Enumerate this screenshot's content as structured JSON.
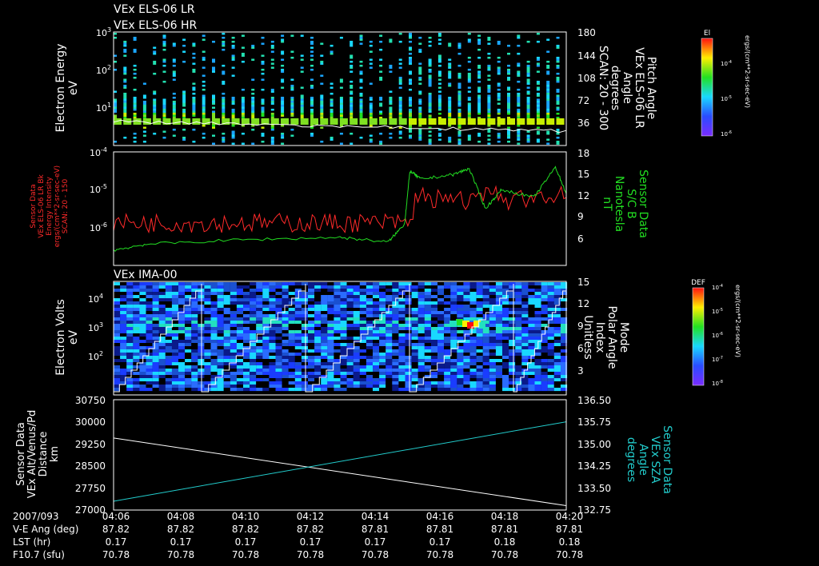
{
  "colors": {
    "background": "#000000",
    "axis": "#ffffff",
    "energy_intensity": "#ff2a2a",
    "magnetic_field": "#22dd22",
    "sza": "#22cccc",
    "altitude": "#ffffff"
  },
  "panel_titles": {
    "els_lr": "VEx ELS-06 LR",
    "els_hr": "VEx ELS-06 HR",
    "ima": "VEx IMA-00"
  },
  "time_axis": {
    "date_label": "2007/093",
    "ticks": [
      "04:06",
      "04:08",
      "04:10",
      "04:12",
      "04:14",
      "04:16",
      "04:18",
      "04:20"
    ],
    "rows": [
      {
        "label": "V-E Ang (deg)",
        "values": [
          "87.82",
          "87.82",
          "87.82",
          "87.82",
          "87.81",
          "87.81",
          "87.81",
          "87.81"
        ]
      },
      {
        "label": "LST (hr)",
        "values": [
          "0.17",
          "0.17",
          "0.17",
          "0.17",
          "0.17",
          "0.17",
          "0.18",
          "0.18"
        ]
      },
      {
        "label": "F10.7 (sfu)",
        "values": [
          "70.78",
          "70.78",
          "70.78",
          "70.78",
          "70.78",
          "70.78",
          "70.78",
          "70.78"
        ]
      }
    ]
  },
  "chart_data": [
    {
      "type": "heatmap",
      "panel": "els",
      "ylabel": [
        "Electron Energy",
        "eV"
      ],
      "y_ticks": [
        {
          "base": "10",
          "exp": "3"
        },
        {
          "base": "10",
          "exp": "2"
        },
        {
          "base": "10",
          "exp": "1"
        }
      ],
      "y_scale": "log",
      "ylim": [
        1,
        1000
      ],
      "right_ylabel": [
        "Pitch Angle",
        "VEx ELS-06 LR",
        "Angle",
        "degrees",
        "SCAN: 20 - 300"
      ],
      "right_ticks": [
        "180",
        "144",
        "108",
        "72",
        "36"
      ],
      "right_ylim": [
        0,
        180
      ],
      "colorbar": {
        "title": "El",
        "unit": "ergs/(cm**2-sr-sec-eV)",
        "ticks": [
          {
            "base": "10",
            "exp": "-4"
          },
          {
            "base": "10",
            "exp": "-5"
          },
          {
            "base": "10",
            "exp": "-6"
          }
        ]
      },
      "overlay_line": {
        "name": "pitch angle",
        "color": "#ffffff"
      }
    },
    {
      "type": "line",
      "panel": "sensor",
      "left_ylabel": [
        "Sensor Data",
        "VEx ELS-06 LR Bk",
        "Energy Intensity",
        "ergs/(cm**2-sr-sec-eV)",
        "SCAN: 20 - 150"
      ],
      "left_ticks": [
        {
          "base": "10",
          "exp": "-4"
        },
        {
          "base": "10",
          "exp": "-5"
        },
        {
          "base": "10",
          "exp": "-6"
        }
      ],
      "left_scale": "log",
      "right_ylabel": [
        "Sensor Data",
        "S/C B",
        "Nanotesla",
        "nT"
      ],
      "right_ticks": [
        "18",
        "15",
        "12",
        "9",
        "6"
      ],
      "right_ylim": [
        3,
        18
      ],
      "series": [
        {
          "name": "Energy Intensity",
          "color": "#ff2a2a",
          "axis": "left",
          "log10_values": [
            -6.1,
            -6.15,
            -5.8,
            -5.5,
            -5.3,
            -5.35,
            -5.25
          ],
          "times": [
            "04:06",
            "04:08",
            "04:10",
            "04:12",
            "04:14",
            "04:16",
            "04:18"
          ]
        },
        {
          "name": "S/C B",
          "color": "#22dd22",
          "axis": "right",
          "x": [
            "04:06",
            "04:07",
            "04:10",
            "04:13",
            "04:14:30",
            "04:15:00",
            "04:15:10",
            "04:15:30",
            "04:16:30",
            "04:17:00",
            "04:17:30",
            "04:18:00",
            "04:19:00",
            "04:19:40",
            "04:20"
          ],
          "values": [
            5.0,
            5.8,
            6.4,
            6.7,
            6.1,
            8.5,
            15.5,
            14.4,
            15.0,
            15.8,
            10.5,
            13.0,
            12.0,
            16.0,
            12.5
          ]
        }
      ]
    },
    {
      "type": "heatmap",
      "panel": "ima",
      "ylabel": [
        "Electron Volts",
        "eV"
      ],
      "y_ticks": [
        {
          "base": "10",
          "exp": "4"
        },
        {
          "base": "10",
          "exp": "3"
        },
        {
          "base": "10",
          "exp": "2"
        }
      ],
      "y_scale": "log",
      "right_ylabel": [
        "Mode",
        "Polar Angle",
        "Index",
        "Unitless"
      ],
      "right_ticks": [
        "15",
        "12",
        "9",
        "6",
        "3"
      ],
      "right_ylim": [
        0,
        15
      ],
      "colorbar": {
        "title": "DEF",
        "unit": "ergs/(cm**2-sr-sec-eV)",
        "ticks": [
          {
            "base": "10",
            "exp": "-4"
          },
          {
            "base": "10",
            "exp": "-5"
          },
          {
            "base": "10",
            "exp": "-6"
          },
          {
            "base": "10",
            "exp": "-7"
          },
          {
            "base": "10",
            "exp": "-8"
          }
        ]
      },
      "overlay_line": {
        "name": "polar angle index staircase",
        "color": "#ffffff"
      }
    },
    {
      "type": "line",
      "panel": "position",
      "left_ylabel": [
        "Sensor Data",
        "VEx Alt/Venus/Pd",
        "Distance",
        "km"
      ],
      "left_ticks": [
        "30750",
        "30000",
        "29250",
        "28500",
        "27750",
        "27000"
      ],
      "ylim": [
        27000,
        30750
      ],
      "right_ylabel": [
        "Sensor Data",
        "VEx SZA",
        "Angle",
        "degrees"
      ],
      "right_ticks": [
        "136.50",
        "135.75",
        "135.00",
        "134.25",
        "133.50",
        "132.75"
      ],
      "right_ylim": [
        132.75,
        136.5
      ],
      "series": [
        {
          "name": "Alt",
          "color": "#ffffff",
          "axis": "left",
          "x": [
            "04:06",
            "04:20"
          ],
          "values": [
            29450,
            27150
          ]
        },
        {
          "name": "SZA",
          "color": "#22cccc",
          "axis": "right",
          "x": [
            "04:06",
            "04:20"
          ],
          "values": [
            133.05,
            135.75
          ]
        }
      ]
    }
  ]
}
